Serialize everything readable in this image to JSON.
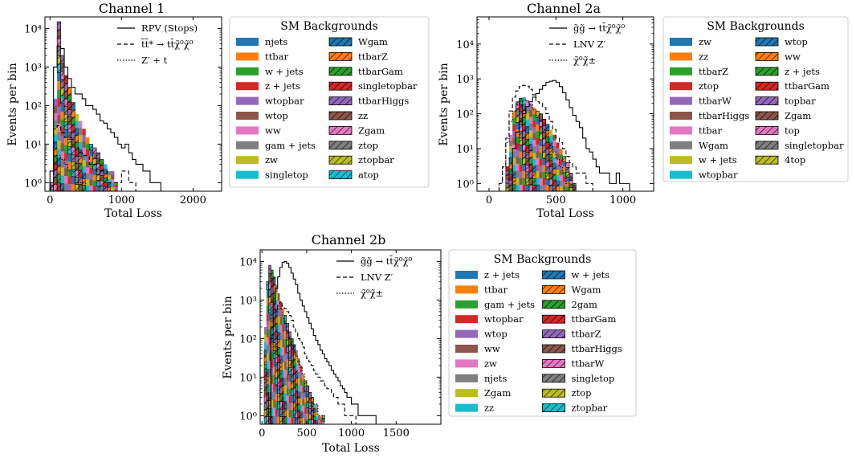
{
  "chart_data": [
    {
      "type": "histogram",
      "title": "Channel 1",
      "xlabel": "Total Loss",
      "ylabel": "Events per bin",
      "xlim": [
        -70,
        2400
      ],
      "ylim": [
        0.6,
        20000
      ],
      "yscale": "log",
      "x_ticks": [
        0,
        1000,
        2000
      ],
      "x_tick_labels": [
        "0",
        "1000",
        "2000"
      ],
      "y_ticks": [
        1,
        10,
        100,
        1000,
        10000
      ],
      "y_tick_labels": [
        "10⁰",
        "10¹",
        "10²",
        "10³",
        "10⁴"
      ],
      "bin_width": 50,
      "signal_legend": [
        {
          "label": "RPV (Stops)",
          "style": "solid"
        },
        {
          "label": "t̃t̃* → tt̄χ̃⁰χ̃⁰",
          "style": "dashed"
        },
        {
          "label": "Z′ + t",
          "style": "dotted"
        }
      ],
      "signal_series": [
        {
          "style": "solid",
          "start": 0,
          "values": [
            2,
            1000,
            3500,
            3000,
            1000,
            500,
            300,
            200,
            200,
            150,
            100,
            100,
            80,
            60,
            40,
            35,
            25,
            20,
            15,
            10,
            8,
            10,
            6,
            4,
            3,
            3,
            2,
            2,
            1,
            1,
            1
          ]
        },
        {
          "style": "dashed",
          "start": 0,
          "values": [
            1,
            25,
            30,
            20,
            15,
            15,
            10,
            8,
            6,
            5,
            5,
            3,
            3,
            2,
            2,
            2,
            1,
            1,
            1,
            1,
            2,
            2,
            1,
            1
          ]
        },
        {
          "style": "dotted",
          "start": 0,
          "values": [
            1,
            3,
            5,
            4,
            3,
            2,
            2,
            1,
            1,
            1
          ]
        }
      ],
      "legend_title": "SM Backgrounds",
      "backgrounds": [
        {
          "label": "njets",
          "color": "#1f77b4",
          "hatch": false
        },
        {
          "label": "ttbar",
          "color": "#ff7f0e",
          "hatch": false
        },
        {
          "label": "w + jets",
          "color": "#2ca02c",
          "hatch": false
        },
        {
          "label": "z + jets",
          "color": "#d62728",
          "hatch": false
        },
        {
          "label": "wtopbar",
          "color": "#9467bd",
          "hatch": false
        },
        {
          "label": "wtop",
          "color": "#8c564b",
          "hatch": false
        },
        {
          "label": "ww",
          "color": "#e377c2",
          "hatch": false
        },
        {
          "label": "gam + jets",
          "color": "#7f7f7f",
          "hatch": false
        },
        {
          "label": "zw",
          "color": "#bcbd22",
          "hatch": false
        },
        {
          "label": "singletop",
          "color": "#17becf",
          "hatch": false
        },
        {
          "label": "Wgam",
          "color": "#1f77b4",
          "hatch": true
        },
        {
          "label": "ttbarZ",
          "color": "#ff7f0e",
          "hatch": true
        },
        {
          "label": "ttbarGam",
          "color": "#2ca02c",
          "hatch": true
        },
        {
          "label": "singletopbar",
          "color": "#d62728",
          "hatch": true
        },
        {
          "label": "ttbarHiggs",
          "color": "#9467bd",
          "hatch": true
        },
        {
          "label": "zz",
          "color": "#8c564b",
          "hatch": true
        },
        {
          "label": "Zgam",
          "color": "#e377c2",
          "hatch": true
        },
        {
          "label": "ztop",
          "color": "#7f7f7f",
          "hatch": true
        },
        {
          "label": "ztopbar",
          "color": "#bcbd22",
          "hatch": true
        },
        {
          "label": "atop",
          "color": "#17becf",
          "hatch": true
        }
      ],
      "background_total": {
        "start": 0,
        "values": [
          1,
          150,
          15000,
          2000,
          600,
          300,
          120,
          60,
          40,
          25,
          15,
          10,
          8,
          6,
          4,
          3,
          2,
          2,
          1
        ]
      }
    },
    {
      "type": "histogram",
      "title": "Channel 2a",
      "xlabel": "Total Loss",
      "ylabel": "Events per bin",
      "xlim": [
        -90,
        1230
      ],
      "ylim": [
        0.6,
        60000
      ],
      "yscale": "log",
      "x_ticks": [
        0,
        500,
        1000
      ],
      "x_tick_labels": [
        "0",
        "500",
        "1000"
      ],
      "y_ticks": [
        1,
        10,
        100,
        1000,
        10000
      ],
      "y_tick_labels": [
        "10⁰",
        "10¹",
        "10²",
        "10³",
        "10⁴"
      ],
      "bin_width": 25,
      "signal_legend": [
        {
          "label": "g̃g̃ → tt̄χ̃⁰χ̃⁰",
          "style": "solid"
        },
        {
          "label": "LNV Z′",
          "style": "dashed"
        },
        {
          "label": "χ̃⁰χ̃±",
          "style": "dotted"
        }
      ],
      "signal_series": [
        {
          "style": "solid",
          "start": 175,
          "values": [
            10,
            30,
            60,
            100,
            160,
            220,
            300,
            380,
            500,
            650,
            800,
            850,
            900,
            800,
            600,
            400,
            250,
            150,
            90,
            60,
            40,
            20,
            10,
            8,
            5,
            3,
            2,
            2,
            2,
            1,
            1,
            2,
            1,
            1,
            1
          ]
        },
        {
          "style": "dashed",
          "start": 75,
          "values": [
            1,
            3,
            20,
            120,
            300,
            450,
            600,
            650,
            620,
            500,
            350,
            220,
            200,
            150,
            100,
            60,
            35,
            20,
            15,
            10,
            6,
            4,
            3,
            2,
            2,
            2,
            1,
            1
          ]
        },
        {
          "style": "dotted",
          "start": 75,
          "values": [
            1,
            3,
            15,
            60,
            120,
            180,
            220,
            250,
            230,
            180,
            130,
            90,
            60,
            35,
            20,
            12,
            8,
            5,
            3,
            2,
            1
          ]
        }
      ],
      "legend_title": "SM Backgrounds",
      "backgrounds": [
        {
          "label": "zw",
          "color": "#1f77b4",
          "hatch": false
        },
        {
          "label": "zz",
          "color": "#ff7f0e",
          "hatch": false
        },
        {
          "label": "ttbarZ",
          "color": "#2ca02c",
          "hatch": false
        },
        {
          "label": "ztop",
          "color": "#d62728",
          "hatch": false
        },
        {
          "label": "ttbarW",
          "color": "#9467bd",
          "hatch": false
        },
        {
          "label": "ttbarHiggs",
          "color": "#8c564b",
          "hatch": false
        },
        {
          "label": "ttbar",
          "color": "#e377c2",
          "hatch": false
        },
        {
          "label": "Wgam",
          "color": "#7f7f7f",
          "hatch": false
        },
        {
          "label": "w + jets",
          "color": "#bcbd22",
          "hatch": false
        },
        {
          "label": "wtopbar",
          "color": "#17becf",
          "hatch": false
        },
        {
          "label": "wtop",
          "color": "#1f77b4",
          "hatch": true
        },
        {
          "label": "ww",
          "color": "#ff7f0e",
          "hatch": true
        },
        {
          "label": "z + jets",
          "color": "#2ca02c",
          "hatch": true
        },
        {
          "label": "ttbarGam",
          "color": "#d62728",
          "hatch": true
        },
        {
          "label": "topbar",
          "color": "#9467bd",
          "hatch": true
        },
        {
          "label": "Zgam",
          "color": "#8c564b",
          "hatch": true
        },
        {
          "label": "top",
          "color": "#e377c2",
          "hatch": true
        },
        {
          "label": "singletopbar",
          "color": "#7f7f7f",
          "hatch": true
        },
        {
          "label": "4top",
          "color": "#bcbd22",
          "hatch": true
        }
      ],
      "background_total": {
        "start": 125,
        "values": [
          3,
          25,
          120,
          220,
          280,
          300,
          250,
          200,
          150,
          120,
          100,
          70,
          50,
          35,
          25,
          15,
          10,
          6,
          4,
          2,
          1
        ]
      }
    },
    {
      "type": "histogram",
      "title": "Channel 2b",
      "xlabel": "Total Loss",
      "ylabel": "Events per bin",
      "xlim": [
        -20,
        2000
      ],
      "ylim": [
        0.6,
        20000
      ],
      "yscale": "log",
      "x_ticks": [
        0,
        500,
        1000,
        1500
      ],
      "x_tick_labels": [
        "0",
        "500",
        "1000",
        "1500"
      ],
      "y_ticks": [
        1,
        10,
        100,
        1000,
        10000
      ],
      "y_tick_labels": [
        "10⁰",
        "10¹",
        "10²",
        "10³",
        "10⁴"
      ],
      "bin_width": 25,
      "signal_legend": [
        {
          "label": "g̃g̃ → tt̄χ̃⁰χ̃⁰",
          "style": "solid"
        },
        {
          "label": "LNV Z′",
          "style": "dashed"
        },
        {
          "label": "χ̃⁰χ̃±",
          "style": "dotted"
        }
      ],
      "signal_series": [
        {
          "style": "solid",
          "start": 100,
          "values": [
            200,
            800,
            2000,
            4000,
            7000,
            9500,
            10000,
            9000,
            7000,
            5000,
            3500,
            2500,
            1500,
            1000,
            700,
            500,
            350,
            250,
            180,
            120,
            90,
            70,
            50,
            40,
            30,
            25,
            20,
            15,
            12,
            10,
            8,
            6,
            5,
            4,
            3,
            3,
            2,
            2,
            2,
            1,
            1,
            1,
            1,
            1,
            1,
            1,
            1
          ]
        },
        {
          "style": "dashed",
          "start": 100,
          "values": [
            100,
            300,
            600,
            800,
            900,
            700,
            600,
            500,
            400,
            300,
            200,
            150,
            100,
            80,
            60,
            40,
            30,
            25,
            20,
            15,
            12,
            10,
            8,
            8,
            6,
            5,
            5,
            4,
            3,
            3,
            2,
            2,
            2,
            1,
            1,
            1,
            1,
            1
          ]
        },
        {
          "style": "dotted",
          "start": 100,
          "values": [
            50,
            200,
            500,
            700,
            600,
            400,
            250,
            150,
            100,
            70,
            50,
            35,
            25,
            18,
            12,
            8,
            6,
            4,
            3,
            2,
            2,
            1,
            1,
            1
          ]
        }
      ],
      "legend_title": "SM Backgrounds",
      "backgrounds": [
        {
          "label": "z + jets",
          "color": "#1f77b4",
          "hatch": false
        },
        {
          "label": "ttbar",
          "color": "#ff7f0e",
          "hatch": false
        },
        {
          "label": "gam + jets",
          "color": "#2ca02c",
          "hatch": false
        },
        {
          "label": "wtopbar",
          "color": "#d62728",
          "hatch": false
        },
        {
          "label": "wtop",
          "color": "#9467bd",
          "hatch": false
        },
        {
          "label": "ww",
          "color": "#8c564b",
          "hatch": false
        },
        {
          "label": "zw",
          "color": "#e377c2",
          "hatch": false
        },
        {
          "label": "njets",
          "color": "#7f7f7f",
          "hatch": false
        },
        {
          "label": "Zgam",
          "color": "#bcbd22",
          "hatch": false
        },
        {
          "label": "zz",
          "color": "#17becf",
          "hatch": false
        },
        {
          "label": "w + jets",
          "color": "#1f77b4",
          "hatch": true
        },
        {
          "label": "Wgam",
          "color": "#ff7f0e",
          "hatch": true
        },
        {
          "label": "2gam",
          "color": "#2ca02c",
          "hatch": true
        },
        {
          "label": "ttbarGam",
          "color": "#d62728",
          "hatch": true
        },
        {
          "label": "ttbarZ",
          "color": "#9467bd",
          "hatch": true
        },
        {
          "label": "ttbarHiggs",
          "color": "#8c564b",
          "hatch": true
        },
        {
          "label": "ttbarW",
          "color": "#e377c2",
          "hatch": true
        },
        {
          "label": "singletop",
          "color": "#7f7f7f",
          "hatch": true
        },
        {
          "label": "ztop",
          "color": "#bcbd22",
          "hatch": true
        },
        {
          "label": "ztopbar",
          "color": "#17becf",
          "hatch": true
        }
      ],
      "background_total": {
        "start": 25,
        "values": [
          200,
          3000,
          8000,
          6000,
          4000,
          2500,
          1500,
          900,
          600,
          400,
          250,
          150,
          100,
          70,
          50,
          30,
          20,
          12,
          8,
          6,
          4,
          3,
          2,
          2,
          1,
          1,
          1
        ]
      }
    }
  ]
}
